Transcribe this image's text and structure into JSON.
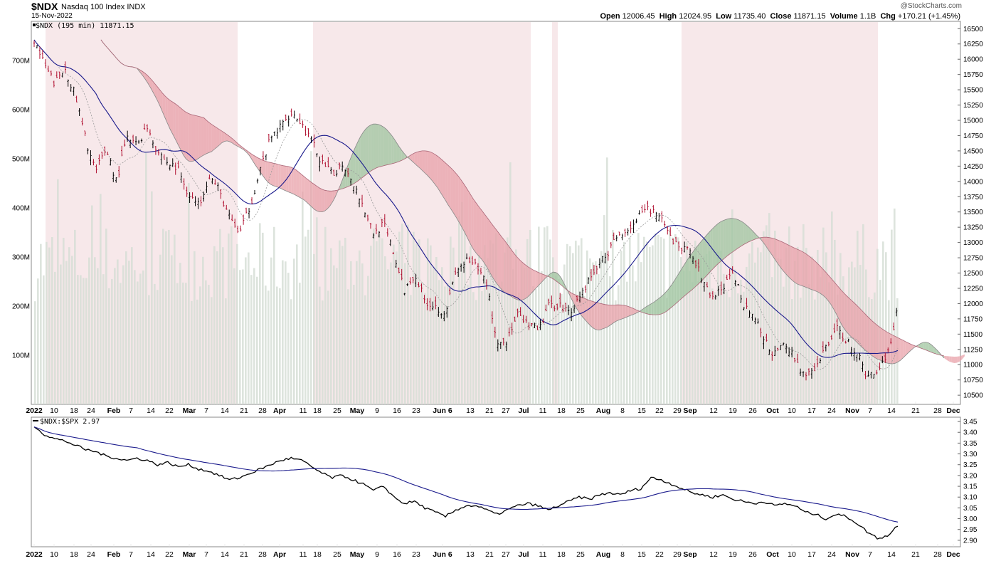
{
  "header": {
    "symbol": "$NDX",
    "name": "Nasdaq 100 Index",
    "exchange": "INDX",
    "date": "15-Nov-2022",
    "brand": "@StockCharts.com",
    "quote": [
      {
        "label": "Open",
        "value": "12006.45"
      },
      {
        "label": "High",
        "value": "12024.95"
      },
      {
        "label": "Low",
        "value": "11735.40"
      },
      {
        "label": "Close",
        "value": "11871.15"
      },
      {
        "label": "Volume",
        "value": "1.1B"
      },
      {
        "label": "Chg",
        "value": "+170.21 (+1.45%)"
      }
    ]
  },
  "chart_data": [
    {
      "type": "candlestick",
      "panel": "price",
      "legend": "$NDX (195 min) 11871.15",
      "y_ticks": [
        10500,
        10750,
        11000,
        11250,
        11500,
        11750,
        12000,
        12250,
        12500,
        12750,
        13000,
        13250,
        13500,
        13750,
        14000,
        14250,
        14500,
        14750,
        15000,
        15250,
        15500,
        15750,
        16000,
        16250,
        16500
      ],
      "ylim": [
        10350,
        16620
      ],
      "volume_ticks": [
        "100M",
        "200M",
        "300M",
        "400M",
        "500M",
        "600M",
        "700M"
      ],
      "volume_ylim": [
        0,
        780
      ],
      "x_ticks": [
        "2022",
        "10",
        "18",
        "24",
        "Feb",
        "7",
        "14",
        "22",
        "Mar",
        "7",
        "14",
        "21",
        "28",
        "Apr",
        "11",
        "18",
        "25",
        "May",
        "9",
        "16",
        "23",
        "Jun 6",
        "13",
        "21",
        "27",
        "Jul",
        "11",
        "18",
        "25",
        "Aug",
        "8",
        "15",
        "22",
        "29",
        "Sep",
        "12",
        "19",
        "26",
        "Oct",
        "10",
        "17",
        "24",
        "Nov",
        "7",
        "14",
        "21",
        "28",
        "Dec"
      ],
      "close_series_approx": [
        [
          0,
          16320
        ],
        [
          2,
          15900
        ],
        [
          4,
          15600
        ],
        [
          6,
          15850
        ],
        [
          8,
          15400
        ],
        [
          10,
          14700
        ],
        [
          12,
          14150
        ],
        [
          14,
          14550
        ],
        [
          16,
          14000
        ],
        [
          18,
          14700
        ],
        [
          20,
          14600
        ],
        [
          22,
          14900
        ],
        [
          24,
          14500
        ],
        [
          26,
          14300
        ],
        [
          28,
          14200
        ],
        [
          30,
          13800
        ],
        [
          32,
          13600
        ],
        [
          34,
          14100
        ],
        [
          36,
          13850
        ],
        [
          38,
          13400
        ],
        [
          40,
          13150
        ],
        [
          42,
          13600
        ],
        [
          44,
          14200
        ],
        [
          46,
          14700
        ],
        [
          48,
          14900
        ],
        [
          50,
          15150
        ],
        [
          52,
          14950
        ],
        [
          54,
          14650
        ],
        [
          56,
          14300
        ],
        [
          58,
          14100
        ],
        [
          60,
          14300
        ],
        [
          62,
          14000
        ],
        [
          64,
          13600
        ],
        [
          66,
          13150
        ],
        [
          68,
          13300
        ],
        [
          70,
          12800
        ],
        [
          72,
          12200
        ],
        [
          74,
          12500
        ],
        [
          76,
          12050
        ],
        [
          78,
          11950
        ],
        [
          80,
          11850
        ],
        [
          82,
          12500
        ],
        [
          84,
          12700
        ],
        [
          86,
          12600
        ],
        [
          88,
          12350
        ],
        [
          90,
          11350
        ],
        [
          92,
          11400
        ],
        [
          94,
          11800
        ],
        [
          96,
          11650
        ],
        [
          98,
          11550
        ],
        [
          100,
          11950
        ],
        [
          102,
          12000
        ],
        [
          104,
          11850
        ],
        [
          106,
          12100
        ],
        [
          108,
          12400
        ],
        [
          110,
          12650
        ],
        [
          112,
          12900
        ],
        [
          114,
          13150
        ],
        [
          116,
          13250
        ],
        [
          118,
          13450
        ],
        [
          120,
          13550
        ],
        [
          122,
          13350
        ],
        [
          124,
          13050
        ],
        [
          126,
          12900
        ],
        [
          128,
          12850
        ],
        [
          130,
          12350
        ],
        [
          132,
          12100
        ],
        [
          134,
          12250
        ],
        [
          136,
          12500
        ],
        [
          138,
          12000
        ],
        [
          140,
          11800
        ],
        [
          142,
          11400
        ],
        [
          144,
          11150
        ],
        [
          146,
          11350
        ],
        [
          148,
          11100
        ],
        [
          150,
          10800
        ],
        [
          152,
          10900
        ],
        [
          154,
          11300
        ],
        [
          156,
          11600
        ],
        [
          158,
          11400
        ],
        [
          160,
          11200
        ],
        [
          162,
          10800
        ],
        [
          164,
          10900
        ],
        [
          166,
          11200
        ],
        [
          168,
          11900
        ]
      ]
    },
    {
      "type": "line",
      "panel": "ratio",
      "legend": "$NDX:$SPX 2.97",
      "y_ticks": [
        2.9,
        2.95,
        3.0,
        3.05,
        3.1,
        3.15,
        3.2,
        3.25,
        3.3,
        3.35,
        3.4,
        3.45
      ],
      "ylim": [
        2.87,
        3.47
      ],
      "values_approx": [
        [
          0,
          3.43
        ],
        [
          2,
          3.39
        ],
        [
          4,
          3.37
        ],
        [
          6,
          3.36
        ],
        [
          8,
          3.34
        ],
        [
          10,
          3.32
        ],
        [
          12,
          3.31
        ],
        [
          14,
          3.29
        ],
        [
          16,
          3.28
        ],
        [
          18,
          3.27
        ],
        [
          20,
          3.28
        ],
        [
          22,
          3.27
        ],
        [
          24,
          3.25
        ],
        [
          26,
          3.26
        ],
        [
          28,
          3.24
        ],
        [
          30,
          3.25
        ],
        [
          32,
          3.23
        ],
        [
          34,
          3.22
        ],
        [
          36,
          3.2
        ],
        [
          38,
          3.18
        ],
        [
          40,
          3.19
        ],
        [
          42,
          3.21
        ],
        [
          44,
          3.23
        ],
        [
          46,
          3.25
        ],
        [
          48,
          3.27
        ],
        [
          50,
          3.28
        ],
        [
          52,
          3.27
        ],
        [
          54,
          3.24
        ],
        [
          56,
          3.21
        ],
        [
          58,
          3.19
        ],
        [
          60,
          3.2
        ],
        [
          62,
          3.18
        ],
        [
          64,
          3.16
        ],
        [
          66,
          3.13
        ],
        [
          68,
          3.15
        ],
        [
          70,
          3.1
        ],
        [
          72,
          3.07
        ],
        [
          74,
          3.08
        ],
        [
          76,
          3.05
        ],
        [
          78,
          3.03
        ],
        [
          80,
          3.01
        ],
        [
          82,
          3.04
        ],
        [
          84,
          3.06
        ],
        [
          86,
          3.06
        ],
        [
          88,
          3.04
        ],
        [
          90,
          3.02
        ],
        [
          92,
          3.04
        ],
        [
          94,
          3.06
        ],
        [
          96,
          3.07
        ],
        [
          98,
          3.06
        ],
        [
          100,
          3.04
        ],
        [
          102,
          3.06
        ],
        [
          104,
          3.08
        ],
        [
          106,
          3.1
        ],
        [
          108,
          3.09
        ],
        [
          110,
          3.11
        ],
        [
          112,
          3.12
        ],
        [
          114,
          3.11
        ],
        [
          116,
          3.13
        ],
        [
          118,
          3.14
        ],
        [
          120,
          3.19
        ],
        [
          122,
          3.18
        ],
        [
          124,
          3.16
        ],
        [
          126,
          3.14
        ],
        [
          128,
          3.12
        ],
        [
          130,
          3.11
        ],
        [
          132,
          3.1
        ],
        [
          134,
          3.11
        ],
        [
          136,
          3.09
        ],
        [
          138,
          3.08
        ],
        [
          140,
          3.07
        ],
        [
          142,
          3.08
        ],
        [
          144,
          3.06
        ],
        [
          146,
          3.07
        ],
        [
          148,
          3.06
        ],
        [
          150,
          3.03
        ],
        [
          152,
          3.02
        ],
        [
          154,
          3.0
        ],
        [
          156,
          3.02
        ],
        [
          158,
          3.01
        ],
        [
          160,
          2.98
        ],
        [
          162,
          2.94
        ],
        [
          164,
          2.91
        ],
        [
          166,
          2.92
        ],
        [
          168,
          2.97
        ]
      ]
    }
  ]
}
